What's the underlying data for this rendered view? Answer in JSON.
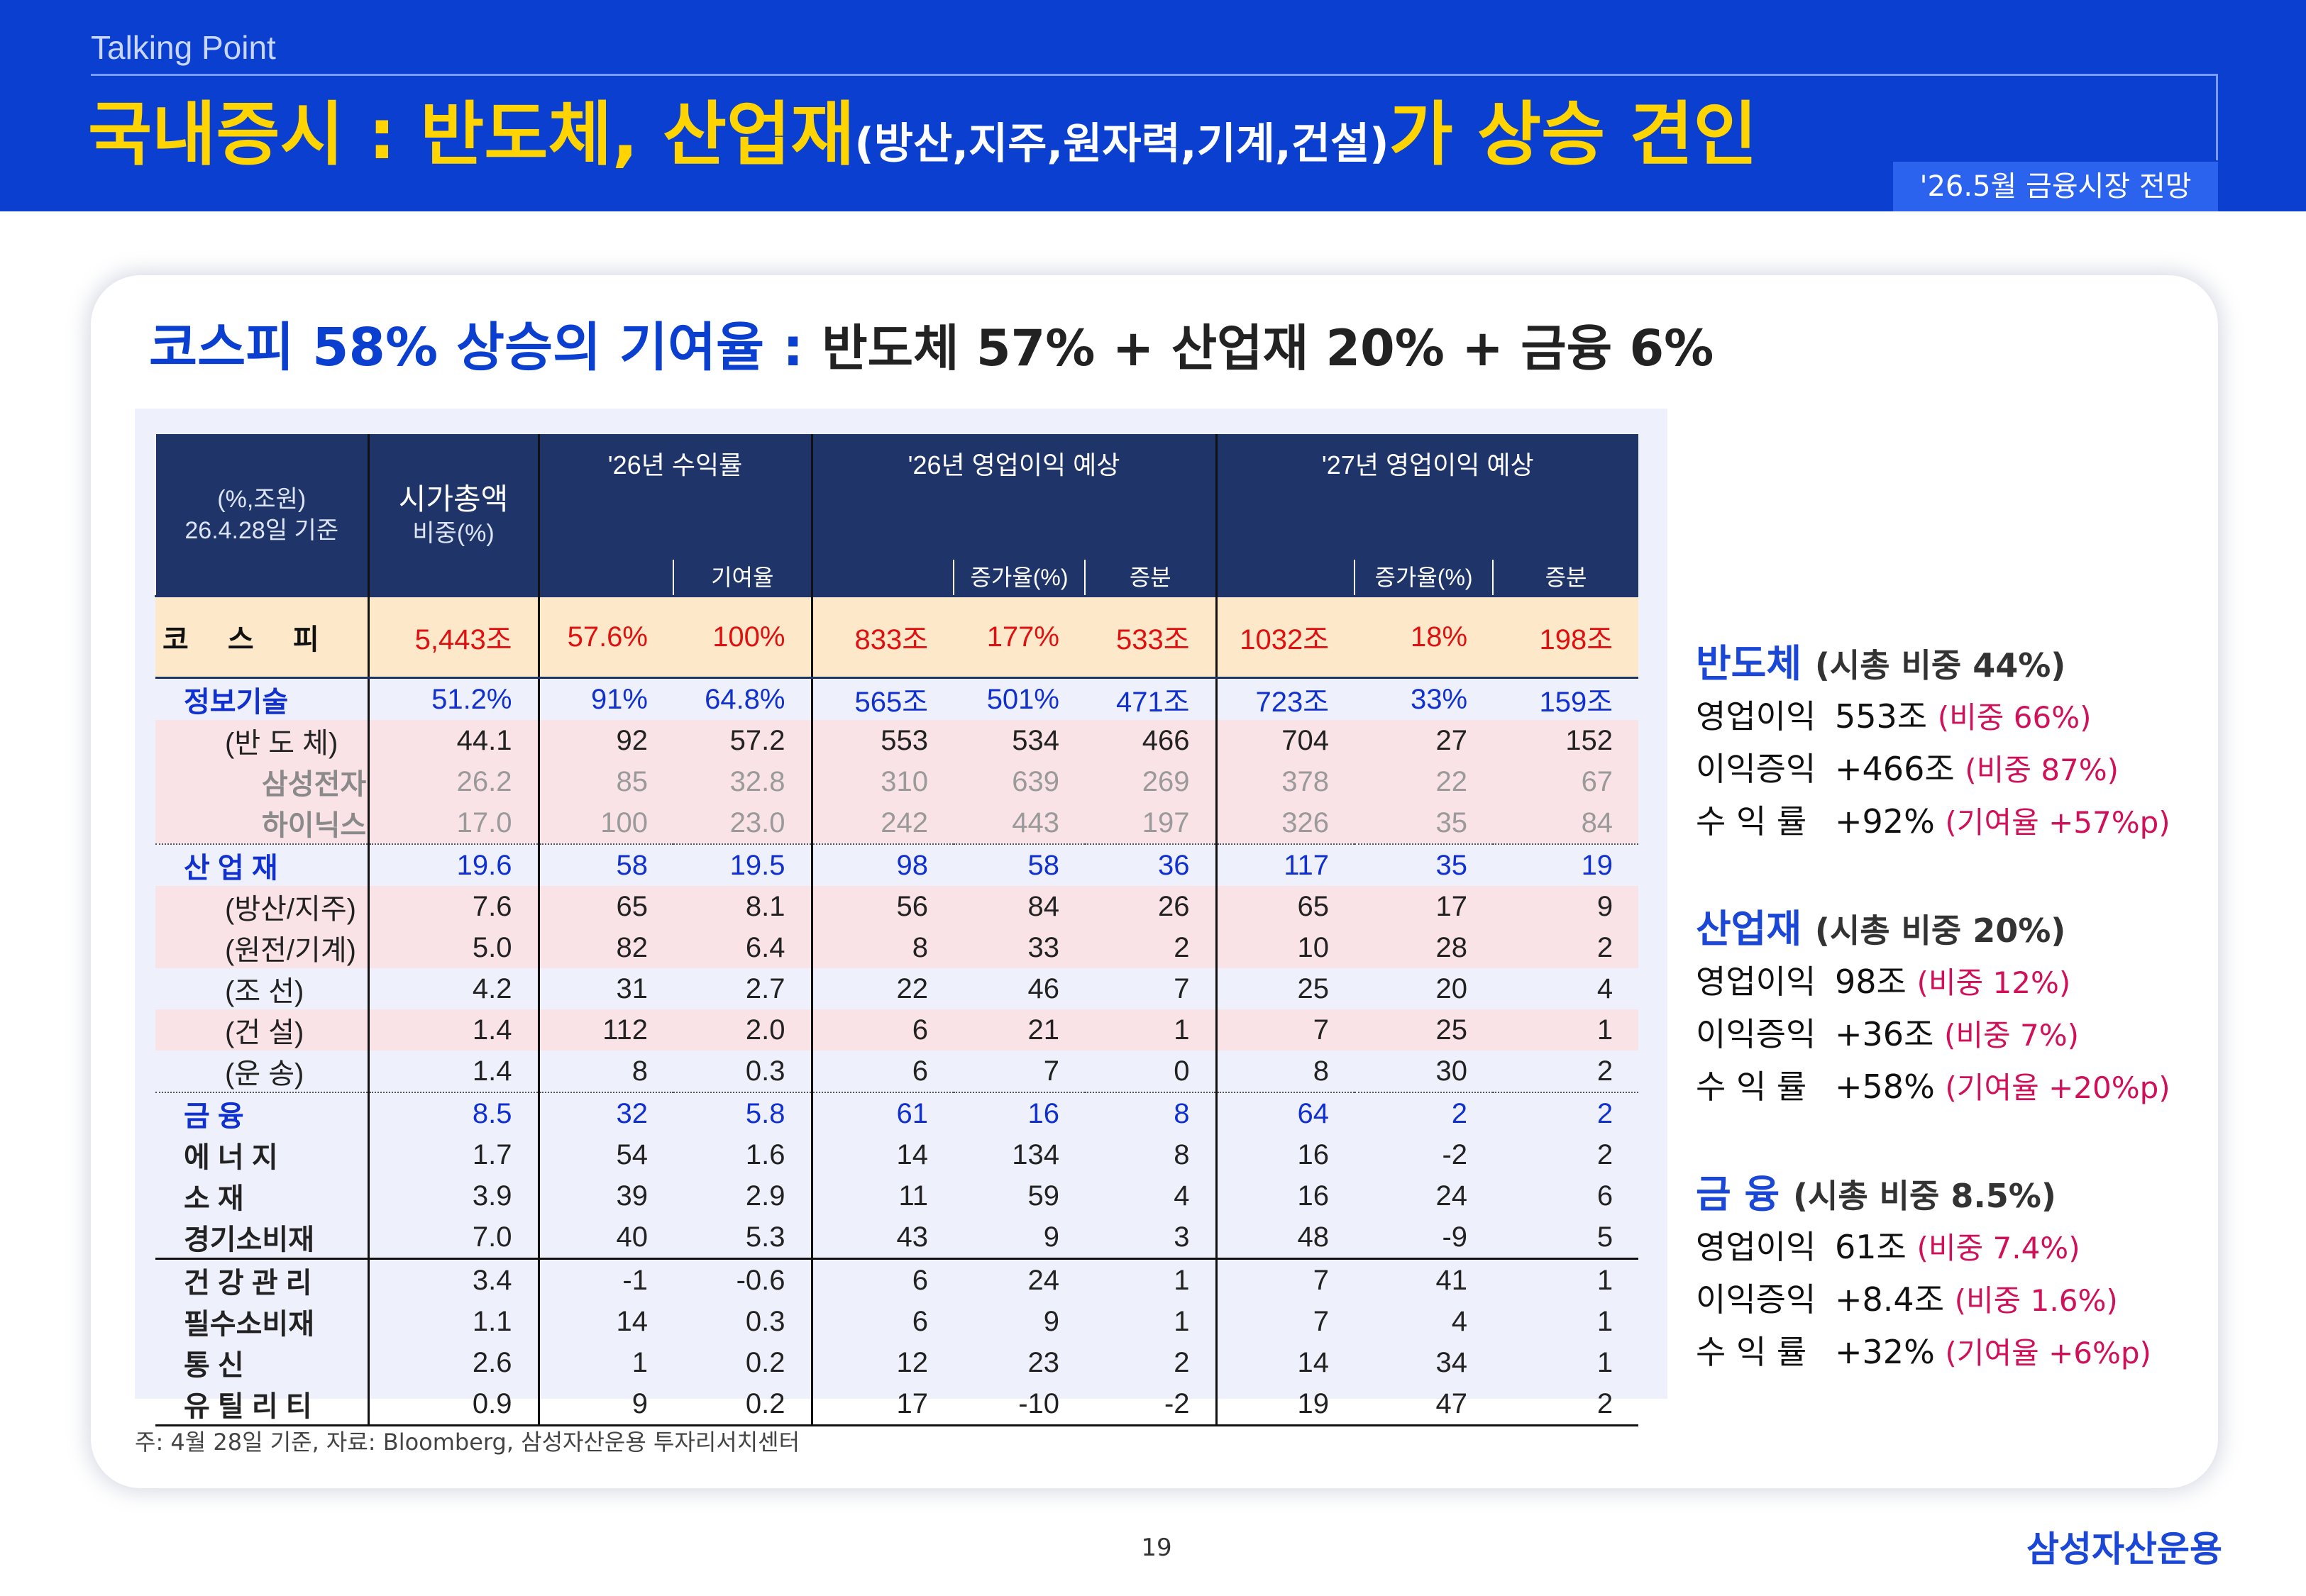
{
  "header": {
    "label": "Talking Point",
    "title_main": "국내증시 : 반도체, 산업재",
    "title_paren": "(방산,지주,원자력,기계,건설)",
    "title_tail": "가 상승 견인",
    "period_badge": "'26.5월 금융시장 전망"
  },
  "section": {
    "heading_main": "코스피 58% 상승의 기여율 :",
    "heading_rest": "반도체 57% + 산업재 20% + 금융 6%"
  },
  "table": {
    "unit_line1": "(%,조원)",
    "unit_line2": "26.4.28일 기준",
    "col_mcap": "시가총액",
    "col_mcap_sub": "비중(%)",
    "col_return": "'26년 수익률",
    "col_contrib": "기여율",
    "col_op26": "'26년 영업이익 예상",
    "col_op27": "'27년 영업이익 예상",
    "col_growth": "증가율(%)",
    "col_delta": "증분",
    "rows": [
      {
        "label": "코 스 피",
        "mcap": "5,443조",
        "ret": "57.6%",
        "contrib": "100%",
        "op26": "833조",
        "g26": "177%",
        "d26": "533조",
        "op27": "1032조",
        "g27": "18%",
        "d27": "198조"
      },
      {
        "label": "정보기술",
        "mcap": "51.2%",
        "ret": "91%",
        "contrib": "64.8%",
        "op26": "565조",
        "g26": "501%",
        "d26": "471조",
        "op27": "723조",
        "g27": "33%",
        "d27": "159조"
      },
      {
        "label": "(반 도 체)",
        "mcap": "44.1",
        "ret": "92",
        "contrib": "57.2",
        "op26": "553",
        "g26": "534",
        "d26": "466",
        "op27": "704",
        "g27": "27",
        "d27": "152"
      },
      {
        "label": "삼성전자",
        "mcap": "26.2",
        "ret": "85",
        "contrib": "32.8",
        "op26": "310",
        "g26": "639",
        "d26": "269",
        "op27": "378",
        "g27": "22",
        "d27": "67"
      },
      {
        "label": "하이닉스",
        "mcap": "17.0",
        "ret": "100",
        "contrib": "23.0",
        "op26": "242",
        "g26": "443",
        "d26": "197",
        "op27": "326",
        "g27": "35",
        "d27": "84"
      },
      {
        "label": "산 업 재",
        "mcap": "19.6",
        "ret": "58",
        "contrib": "19.5",
        "op26": "98",
        "g26": "58",
        "d26": "36",
        "op27": "117",
        "g27": "35",
        "d27": "19"
      },
      {
        "label": "(방산/지주)",
        "mcap": "7.6",
        "ret": "65",
        "contrib": "8.1",
        "op26": "56",
        "g26": "84",
        "d26": "26",
        "op27": "65",
        "g27": "17",
        "d27": "9"
      },
      {
        "label": "(원전/기계)",
        "mcap": "5.0",
        "ret": "82",
        "contrib": "6.4",
        "op26": "8",
        "g26": "33",
        "d26": "2",
        "op27": "10",
        "g27": "28",
        "d27": "2"
      },
      {
        "label": "(조      선)",
        "mcap": "4.2",
        "ret": "31",
        "contrib": "2.7",
        "op26": "22",
        "g26": "46",
        "d26": "7",
        "op27": "25",
        "g27": "20",
        "d27": "4"
      },
      {
        "label": "(건      설)",
        "mcap": "1.4",
        "ret": "112",
        "contrib": "2.0",
        "op26": "6",
        "g26": "21",
        "d26": "1",
        "op27": "7",
        "g27": "25",
        "d27": "1"
      },
      {
        "label": "(운      송)",
        "mcap": "1.4",
        "ret": "8",
        "contrib": "0.3",
        "op26": "6",
        "g26": "7",
        "d26": "0",
        "op27": "8",
        "g27": "30",
        "d27": "2"
      },
      {
        "label": "금      융",
        "mcap": "8.5",
        "ret": "32",
        "contrib": "5.8",
        "op26": "61",
        "g26": "16",
        "d26": "8",
        "op27": "64",
        "g27": "2",
        "d27": "2"
      },
      {
        "label": "에   너   지",
        "mcap": "1.7",
        "ret": "54",
        "contrib": "1.6",
        "op26": "14",
        "g26": "134",
        "d26": "8",
        "op27": "16",
        "g27": "-2",
        "d27": "2"
      },
      {
        "label": "소         재",
        "mcap": "3.9",
        "ret": "39",
        "contrib": "2.9",
        "op26": "11",
        "g26": "59",
        "d26": "4",
        "op27": "16",
        "g27": "24",
        "d27": "6"
      },
      {
        "label": "경기소비재",
        "mcap": "7.0",
        "ret": "40",
        "contrib": "5.3",
        "op26": "43",
        "g26": "9",
        "d26": "3",
        "op27": "48",
        "g27": "-9",
        "d27": "5"
      },
      {
        "label": "건 강 관 리",
        "mcap": "3.4",
        "ret": "-1",
        "contrib": "-0.6",
        "op26": "6",
        "g26": "24",
        "d26": "1",
        "op27": "7",
        "g27": "41",
        "d27": "1"
      },
      {
        "label": "필수소비재",
        "mcap": "1.1",
        "ret": "14",
        "contrib": "0.3",
        "op26": "6",
        "g26": "9",
        "d26": "1",
        "op27": "7",
        "g27": "4",
        "d27": "1"
      },
      {
        "label": "통         신",
        "mcap": "2.6",
        "ret": "1",
        "contrib": "0.2",
        "op26": "12",
        "g26": "23",
        "d26": "2",
        "op27": "14",
        "g27": "34",
        "d27": "1"
      },
      {
        "label": "유 틸 리 티",
        "mcap": "0.9",
        "ret": "9",
        "contrib": "0.2",
        "op26": "17",
        "g26": "-10",
        "d26": "-2",
        "op27": "19",
        "g27": "47",
        "d27": "2"
      }
    ]
  },
  "footnote": "주: 4월 28일 기준, 자료: Bloomberg, 삼성자산운용 투자리서치센터",
  "page_number": "19",
  "brand": "삼성자산운용",
  "summary": [
    {
      "title": "반도체",
      "share": "(시총 비중 44%)",
      "lines": [
        {
          "key": "영업이익",
          "val": "553조",
          "note": "(비중 66%)"
        },
        {
          "key": "이익증익",
          "val": "+466조",
          "note": "(비중 87%)"
        },
        {
          "key": "수 익 률",
          "val": "+92%",
          "note": "(기여율 +57%p)"
        }
      ]
    },
    {
      "title": "산업재",
      "share": "(시총 비중 20%)",
      "lines": [
        {
          "key": "영업이익",
          "val": "98조",
          "note": "(비중 12%)"
        },
        {
          "key": "이익증익",
          "val": "+36조",
          "note": "(비중 7%)"
        },
        {
          "key": "수 익 률",
          "val": "+58%",
          "note": "(기여율 +20%p)"
        }
      ]
    },
    {
      "title": "금   융",
      "share": "(시총 비중 8.5%)",
      "lines": [
        {
          "key": "영업이익",
          "val": "61조",
          "note": "(비중 7.4%)"
        },
        {
          "key": "이익증익",
          "val": "+8.4조",
          "note": "(비중 1.6%)"
        },
        {
          "key": "수 익 률",
          "val": "+32%",
          "note": "(기여율 +6%p)"
        }
      ]
    }
  ]
}
